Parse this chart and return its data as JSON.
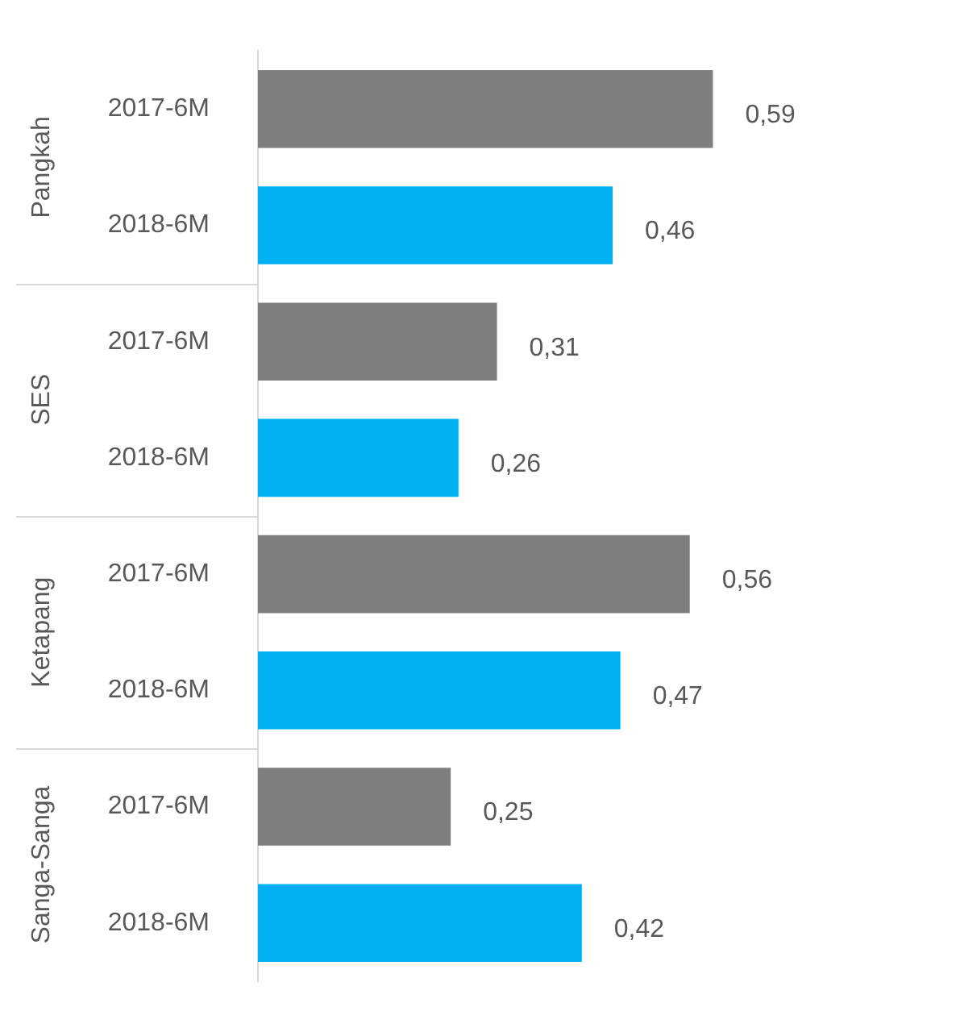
{
  "chart_data": {
    "type": "bar",
    "orientation": "horizontal",
    "categories": [
      "2017-6M",
      "2018-6M",
      "2017-6M",
      "2018-6M",
      "2017-6M",
      "2018-6M",
      "2017-6M",
      "2018-6M"
    ],
    "values": [
      0.59,
      0.46,
      0.31,
      0.26,
      0.56,
      0.47,
      0.25,
      0.42
    ],
    "colors": [
      "#7f7f7f",
      "#00b0f0",
      "#7f7f7f",
      "#00b0f0",
      "#7f7f7f",
      "#00b0f0",
      "#7f7f7f",
      "#00b0f0"
    ],
    "value_labels": [
      "0,59",
      "0,46",
      "0,31",
      "0,26",
      "0,56",
      "0,47",
      "0,25",
      "0,42"
    ],
    "annotations": [
      "Pangkah",
      "SES",
      "Ketapang",
      "Sanga-Sanga"
    ],
    "legend": false,
    "grid": false
  }
}
